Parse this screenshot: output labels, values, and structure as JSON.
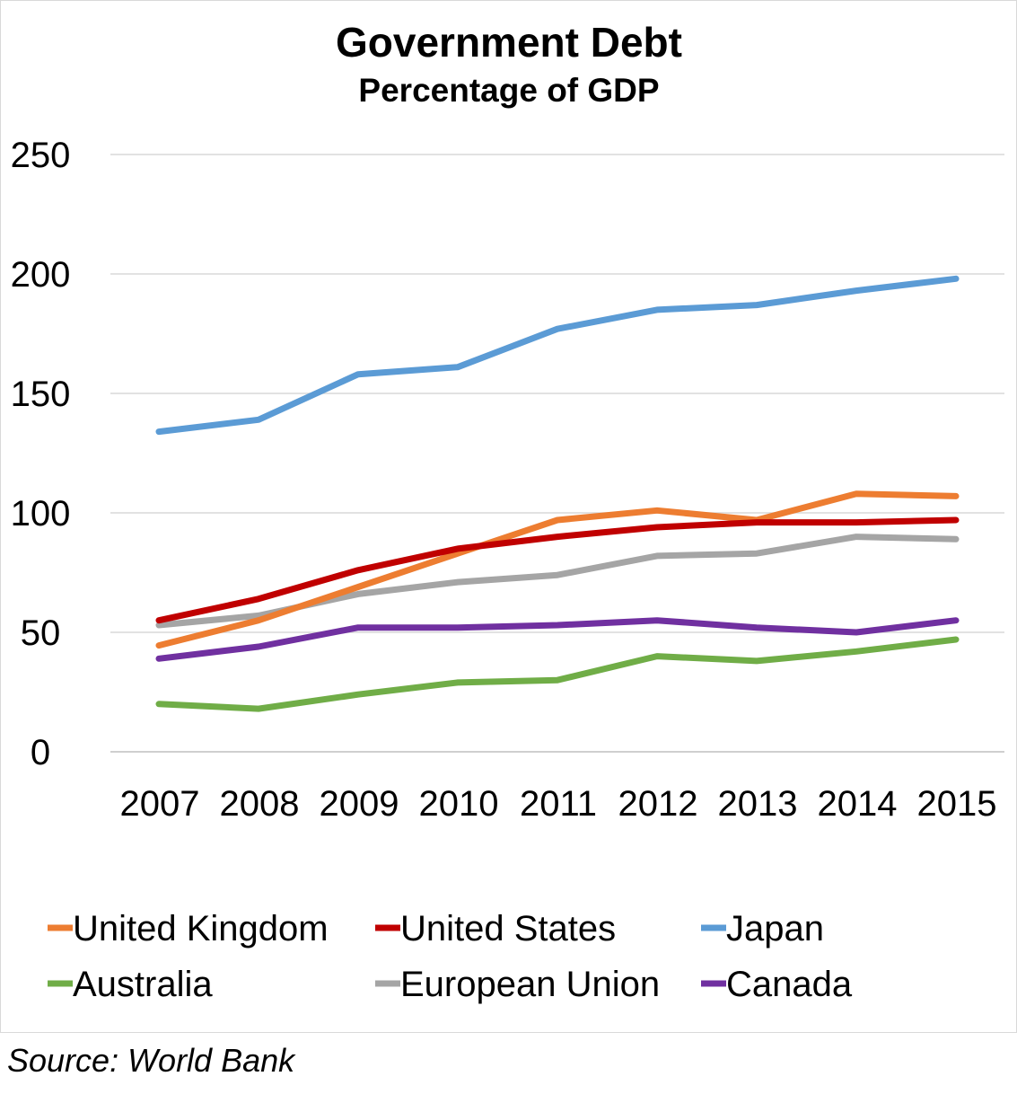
{
  "chart_data": {
    "type": "line",
    "title": "Government Debt",
    "subtitle": "Percentage of GDP",
    "categories": [
      "2007",
      "2008",
      "2009",
      "2010",
      "2011",
      "2012",
      "2013",
      "2014",
      "2015"
    ],
    "y_ticks": [
      "0",
      "50",
      "100",
      "150",
      "200",
      "250"
    ],
    "ylim": [
      0,
      250
    ],
    "grid": true,
    "legend_position": "bottom",
    "series": [
      {
        "name": "United Kingdom",
        "color": "#ed7d31",
        "values": [
          44.5,
          55,
          69,
          83,
          97,
          101,
          97,
          108,
          107
        ]
      },
      {
        "name": "United States",
        "color": "#c00000",
        "values": [
          55,
          64,
          76,
          85,
          90,
          94,
          96,
          96,
          97
        ]
      },
      {
        "name": "Japan",
        "color": "#5b9bd5",
        "values": [
          134,
          139,
          158,
          161,
          177,
          185,
          187,
          193,
          198
        ]
      },
      {
        "name": "Australia",
        "color": "#70ad47",
        "values": [
          20,
          18,
          24,
          29,
          30,
          40,
          38,
          42,
          47
        ]
      },
      {
        "name": "European Union",
        "color": "#a5a5a5",
        "values": [
          53,
          57,
          66,
          71,
          74,
          82,
          83,
          90,
          89
        ]
      },
      {
        "name": "Canada",
        "color": "#7030a0",
        "values": [
          39,
          44,
          52,
          52,
          53,
          55,
          52,
          50,
          55
        ]
      }
    ]
  },
  "source": "Source: World Bank"
}
